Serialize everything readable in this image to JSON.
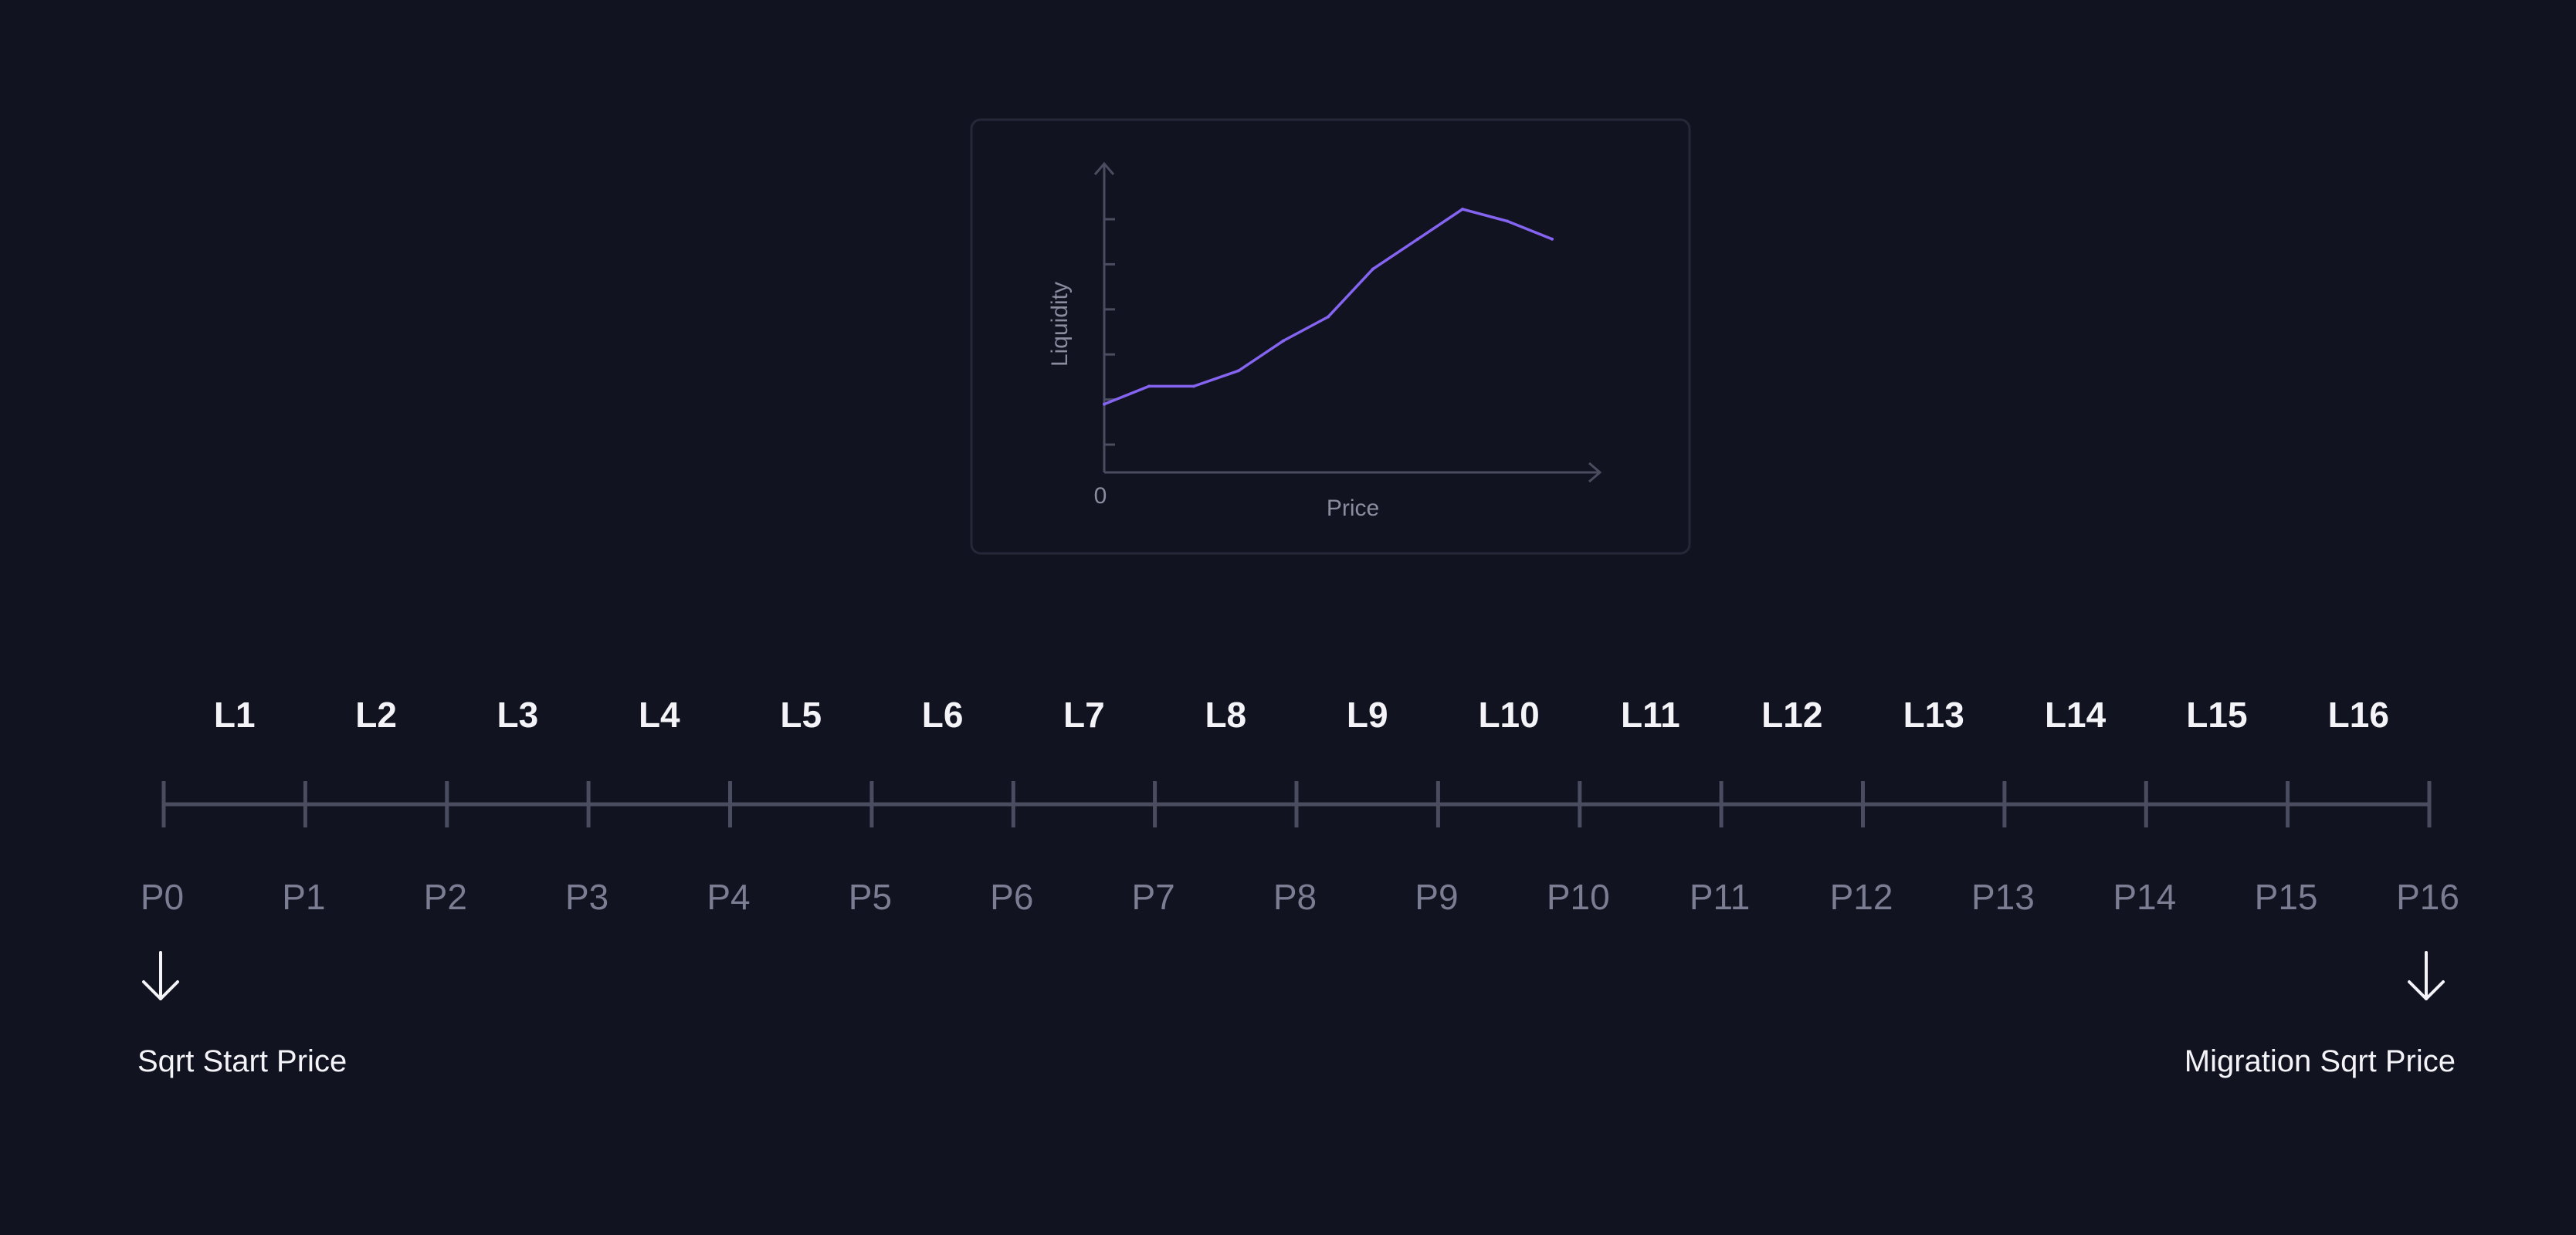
{
  "colors": {
    "background": "#111320",
    "card_border": "#262839",
    "axis": "#4a4c60",
    "curve": "#8464f0",
    "segment_text": "#f4f4f8",
    "price_text": "#7b7d92",
    "line": "#4a4c60"
  },
  "chart_data": {
    "type": "line",
    "x": [
      0,
      1,
      2,
      3,
      4,
      5,
      6,
      7,
      8,
      9,
      10
    ],
    "y": [
      0.57,
      0.72,
      0.72,
      0.85,
      1.1,
      1.3,
      1.7,
      1.95,
      2.2,
      2.1,
      1.95
    ],
    "xlabel": "Price",
    "ylabel": "Liquidity",
    "origin_label": "0",
    "grid": false,
    "y_ticks": 6
  },
  "timeline": {
    "segments": [
      "L1",
      "L2",
      "L3",
      "L4",
      "L5",
      "L6",
      "L7",
      "L8",
      "L9",
      "L10",
      "L11",
      "L12",
      "L13",
      "L14",
      "L15",
      "L16"
    ],
    "prices": [
      "P0",
      "P1",
      "P2",
      "P3",
      "P4",
      "P5",
      "P6",
      "P7",
      "P8",
      "P9",
      "P10",
      "P11",
      "P12",
      "P13",
      "P14",
      "P15",
      "P16"
    ],
    "start_label": "Sqrt Start Price",
    "end_label": "Migration Sqrt Price",
    "start_arrow_icon": "arrow-down-icon",
    "end_arrow_icon": "arrow-down-icon"
  }
}
